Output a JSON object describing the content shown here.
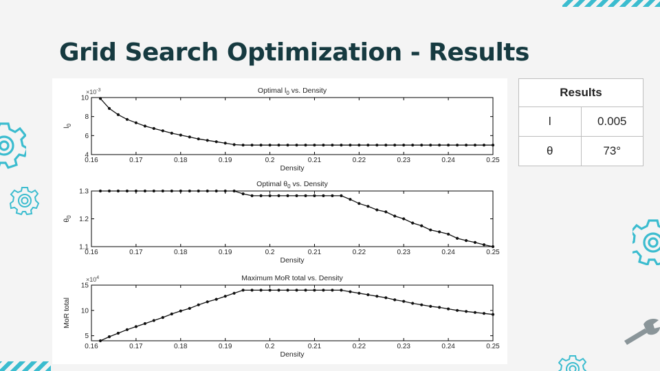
{
  "slide": {
    "title": "Grid Search Optimization - Results"
  },
  "results_table": {
    "header": "Results",
    "rows": [
      {
        "symbol": "l",
        "value": "0.005"
      },
      {
        "symbol": "θ",
        "value": "73°"
      }
    ]
  },
  "decorations": {
    "accent_color": "#3bbccf",
    "icons": [
      "gear-icon",
      "gear-icon",
      "gear-icon",
      "gear-icon",
      "wrench-icon"
    ]
  },
  "chart_data": [
    {
      "type": "line",
      "title_main": "Optimal l",
      "title_sub": "0",
      "title_rest": " vs. Density",
      "ylabel_main": "l",
      "ylabel_sub": "0",
      "xlabel": "Density",
      "exponent_label": "×10",
      "exponent_power": "-3",
      "xlim": [
        0.16,
        0.25
      ],
      "ylim": [
        4,
        10
      ],
      "xticks": [
        "0.16",
        "0.17",
        "0.18",
        "0.19",
        "0.2",
        "0.21",
        "0.22",
        "0.23",
        "0.24",
        "0.25"
      ],
      "yticks": [
        "4",
        "6",
        "8",
        "10"
      ],
      "x": [
        0.162,
        0.164,
        0.166,
        0.168,
        0.17,
        0.172,
        0.174,
        0.176,
        0.178,
        0.18,
        0.182,
        0.184,
        0.186,
        0.188,
        0.19,
        0.192,
        0.194,
        0.196,
        0.198,
        0.2,
        0.202,
        0.204,
        0.206,
        0.208,
        0.21,
        0.212,
        0.214,
        0.216,
        0.218,
        0.22,
        0.222,
        0.224,
        0.226,
        0.228,
        0.23,
        0.232,
        0.234,
        0.236,
        0.238,
        0.24,
        0.242,
        0.244,
        0.246,
        0.248,
        0.25
      ],
      "y": [
        9.9,
        8.85,
        8.2,
        7.7,
        7.35,
        7.0,
        6.75,
        6.5,
        6.25,
        6.05,
        5.85,
        5.65,
        5.5,
        5.35,
        5.2,
        5.05,
        5.0,
        5.0,
        5.0,
        5.0,
        5.0,
        5.0,
        5.0,
        5.0,
        5.0,
        5.0,
        5.0,
        5.0,
        5.0,
        5.0,
        5.0,
        5.0,
        5.0,
        5.0,
        5.0,
        5.0,
        5.0,
        5.0,
        5.0,
        5.0,
        5.0,
        5.0,
        5.0,
        5.0,
        5.0
      ]
    },
    {
      "type": "line",
      "title_main": "Optimal θ",
      "title_sub": "0",
      "title_rest": " vs. Density",
      "ylabel_main": "θ",
      "ylabel_sub": "0",
      "xlabel": "Density",
      "exponent_label": "",
      "exponent_power": "",
      "xlim": [
        0.16,
        0.25
      ],
      "ylim": [
        1.1,
        1.3
      ],
      "xticks": [
        "0.16",
        "0.17",
        "0.18",
        "0.19",
        "0.2",
        "0.21",
        "0.22",
        "0.23",
        "0.24",
        "0.25"
      ],
      "yticks": [
        "1.1",
        "1.2",
        "1.3"
      ],
      "x": [
        0.162,
        0.164,
        0.166,
        0.168,
        0.17,
        0.172,
        0.174,
        0.176,
        0.178,
        0.18,
        0.182,
        0.184,
        0.186,
        0.188,
        0.19,
        0.192,
        0.194,
        0.196,
        0.198,
        0.2,
        0.202,
        0.204,
        0.206,
        0.208,
        0.21,
        0.212,
        0.214,
        0.216,
        0.218,
        0.22,
        0.222,
        0.224,
        0.226,
        0.228,
        0.23,
        0.232,
        0.234,
        0.236,
        0.238,
        0.24,
        0.242,
        0.244,
        0.246,
        0.248,
        0.25
      ],
      "y": [
        1.3,
        1.3,
        1.3,
        1.3,
        1.3,
        1.3,
        1.3,
        1.3,
        1.3,
        1.3,
        1.3,
        1.3,
        1.3,
        1.3,
        1.3,
        1.3,
        1.29,
        1.283,
        1.283,
        1.283,
        1.283,
        1.283,
        1.283,
        1.283,
        1.283,
        1.283,
        1.283,
        1.283,
        1.27,
        1.255,
        1.245,
        1.232,
        1.225,
        1.21,
        1.2,
        1.185,
        1.175,
        1.16,
        1.153,
        1.145,
        1.13,
        1.122,
        1.115,
        1.107,
        1.1
      ]
    },
    {
      "type": "line",
      "title_main": "Maximum MoR total vs. Density",
      "title_sub": "",
      "title_rest": "",
      "ylabel_main": "MoR total",
      "ylabel_sub": "",
      "xlabel": "Density",
      "exponent_label": "×10",
      "exponent_power": "4",
      "xlim": [
        0.16,
        0.25
      ],
      "ylim": [
        4,
        15
      ],
      "xticks": [
        "0.16",
        "0.17",
        "0.18",
        "0.19",
        "0.2",
        "0.21",
        "0.22",
        "0.23",
        "0.24",
        "0.25"
      ],
      "yticks": [
        "5",
        "10",
        "15"
      ],
      "x": [
        0.162,
        0.164,
        0.166,
        0.168,
        0.17,
        0.172,
        0.174,
        0.176,
        0.178,
        0.18,
        0.182,
        0.184,
        0.186,
        0.188,
        0.19,
        0.192,
        0.194,
        0.196,
        0.198,
        0.2,
        0.202,
        0.204,
        0.206,
        0.208,
        0.21,
        0.212,
        0.214,
        0.216,
        0.218,
        0.22,
        0.222,
        0.224,
        0.226,
        0.228,
        0.23,
        0.232,
        0.234,
        0.236,
        0.238,
        0.24,
        0.242,
        0.244,
        0.246,
        0.248,
        0.25
      ],
      "y": [
        4.0,
        4.8,
        5.5,
        6.2,
        6.8,
        7.4,
        8.0,
        8.6,
        9.3,
        9.9,
        10.4,
        11.1,
        11.7,
        12.2,
        12.8,
        13.4,
        14.0,
        14.0,
        14.0,
        14.0,
        14.0,
        14.0,
        14.0,
        14.0,
        14.0,
        14.0,
        14.0,
        14.0,
        13.7,
        13.4,
        13.1,
        12.8,
        12.5,
        12.1,
        11.8,
        11.4,
        11.1,
        10.8,
        10.6,
        10.3,
        10.0,
        9.8,
        9.6,
        9.4,
        9.2
      ]
    }
  ]
}
